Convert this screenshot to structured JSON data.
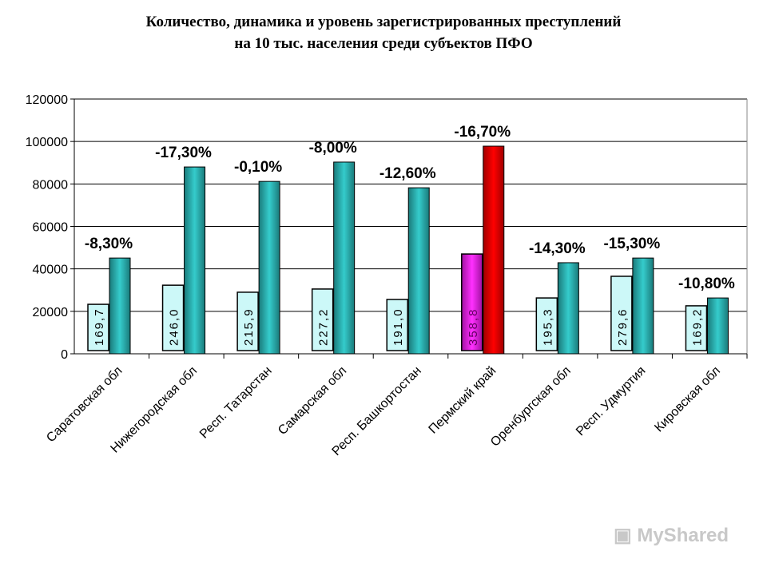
{
  "chart_data": {
    "type": "bar",
    "title": [
      "Количество, динамика и уровень зарегистрированных преступлений",
      "на 10 тыс. населения среди субъектов ПФО"
    ],
    "categories": [
      "Саратовская обл",
      "Нижегородская обл",
      "Респ. Татарстан",
      "Самарская обл",
      "Респ. Башкортостан",
      "Пермский край",
      "Оренбургская обл",
      "Респ. Удмуртия",
      "Кировская обл"
    ],
    "series": [
      {
        "values": [
          23300,
          32300,
          29000,
          30500,
          25600,
          47000,
          26300,
          36500,
          22600
        ],
        "labels": [
          "169,7",
          "246,0",
          "215,9",
          "227,2",
          "191,0",
          "358,8",
          "195,3",
          "279,6",
          "169,2"
        ]
      },
      {
        "values": [
          45100,
          88000,
          81200,
          90300,
          78200,
          97800,
          42900,
          45100,
          26300
        ],
        "labels": [
          "-8,30%",
          "-17,30%",
          "-0,10%",
          "-8,00%",
          "-12,60%",
          "-16,70%",
          "-14,30%",
          "-15,30%",
          "-10,80%"
        ]
      }
    ],
    "highlight_index": 5,
    "colors": {
      "light": "#ccf8f8",
      "dark": "#2aa8a8",
      "highlight_light": "#e020e0",
      "highlight_dark": "#e00000"
    },
    "ylim": [
      0,
      120000
    ],
    "yticks": [
      0,
      20000,
      40000,
      60000,
      80000,
      100000,
      120000
    ],
    "grid": true
  },
  "watermark": "MyShared"
}
